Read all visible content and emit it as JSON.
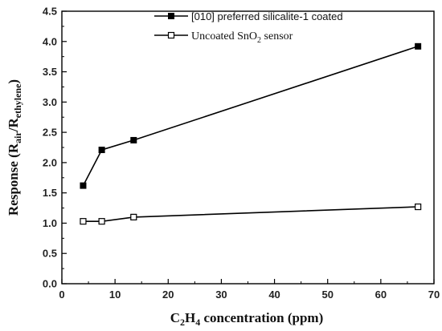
{
  "chart_data": {
    "type": "line",
    "xlabel": {
      "base": "C",
      "sub1": "2",
      "mid": "H",
      "sub2": "4",
      "rest": " concentration (ppm)"
    },
    "ylabel": {
      "pre": "Response (R",
      "sub1": "air",
      "mid": "/R",
      "sub2": "ethylene",
      "post": ")"
    },
    "xlim": [
      0,
      70
    ],
    "ylim": [
      0.0,
      4.5
    ],
    "xticks": [
      "0",
      "10",
      "20",
      "30",
      "40",
      "50",
      "60",
      "70"
    ],
    "yticks": [
      "0.0",
      "0.5",
      "1.0",
      "1.5",
      "2.0",
      "2.5",
      "3.0",
      "3.5",
      "4.0",
      "4.5"
    ],
    "grid": false,
    "legend_position": "top-left",
    "series": [
      {
        "name": "[010] preferred silicalite-1 coated",
        "marker": "filled-square",
        "color": "#000000",
        "x": [
          4,
          7.5,
          13.5,
          67
        ],
        "y": [
          1.62,
          2.21,
          2.37,
          3.92
        ]
      },
      {
        "name_parts": {
          "pre": "Uncoated SnO",
          "sub": "2",
          "post": " sensor"
        },
        "marker": "open-square",
        "color": "#000000",
        "x": [
          4,
          7.5,
          13.5,
          67
        ],
        "y": [
          1.03,
          1.03,
          1.1,
          1.27
        ]
      }
    ]
  }
}
